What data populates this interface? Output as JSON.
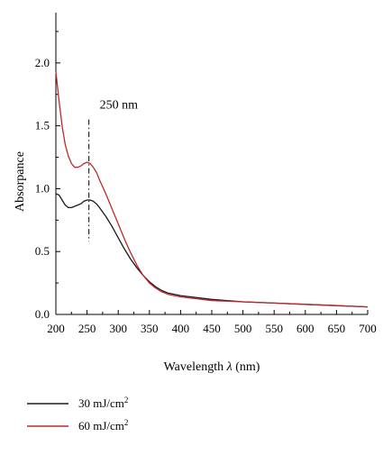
{
  "chart_data": {
    "type": "line",
    "title": "",
    "xlabel": "Wavelength λ (nm)",
    "xlabel_main": "Wavelength ",
    "xlabel_symbol": "λ",
    "xlabel_unit": " (nm)",
    "ylabel": "Absorpance",
    "xlim": [
      200,
      700
    ],
    "ylim": [
      0,
      2.4
    ],
    "xticks": [
      200,
      250,
      300,
      350,
      400,
      450,
      500,
      550,
      600,
      650,
      700
    ],
    "yticks": [
      0.0,
      0.5,
      1.0,
      1.5,
      2.0
    ],
    "ytick_labels": [
      "0.0",
      "0.5",
      "1.0",
      "1.5",
      "2.0"
    ],
    "grid": false,
    "legend_placement": "bottom",
    "annotation": {
      "text": "250 nm",
      "x": 253,
      "y_range": [
        0.58,
        1.55
      ]
    },
    "series": [
      {
        "name": "30 mJ/cm2",
        "name_main": "30 mJ/cm",
        "name_sup": "2",
        "color": "#1a1a1a",
        "x": [
          200,
          205,
          210,
          215,
          220,
          225,
          230,
          235,
          240,
          245,
          250,
          255,
          260,
          265,
          270,
          280,
          290,
          300,
          310,
          320,
          330,
          340,
          350,
          360,
          370,
          380,
          400,
          450,
          500,
          550,
          600,
          650,
          700
        ],
        "y": [
          0.96,
          0.95,
          0.91,
          0.87,
          0.85,
          0.85,
          0.86,
          0.87,
          0.88,
          0.9,
          0.91,
          0.91,
          0.9,
          0.88,
          0.85,
          0.78,
          0.7,
          0.61,
          0.52,
          0.44,
          0.37,
          0.31,
          0.26,
          0.22,
          0.19,
          0.17,
          0.15,
          0.12,
          0.1,
          0.09,
          0.08,
          0.07,
          0.06
        ]
      },
      {
        "name": "60 mJ/cm2",
        "name_main": "60 mJ/cm",
        "name_sup": "2",
        "color": "#c0282d",
        "x": [
          200,
          205,
          210,
          215,
          220,
          225,
          230,
          235,
          240,
          245,
          250,
          255,
          260,
          265,
          270,
          280,
          290,
          300,
          310,
          320,
          330,
          340,
          350,
          360,
          370,
          380,
          400,
          450,
          500,
          550,
          600,
          650,
          700
        ],
        "y": [
          1.93,
          1.7,
          1.5,
          1.35,
          1.26,
          1.2,
          1.17,
          1.17,
          1.18,
          1.2,
          1.21,
          1.2,
          1.17,
          1.13,
          1.07,
          0.96,
          0.84,
          0.72,
          0.6,
          0.49,
          0.39,
          0.31,
          0.25,
          0.21,
          0.18,
          0.16,
          0.14,
          0.11,
          0.1,
          0.09,
          0.08,
          0.07,
          0.06
        ]
      }
    ]
  }
}
